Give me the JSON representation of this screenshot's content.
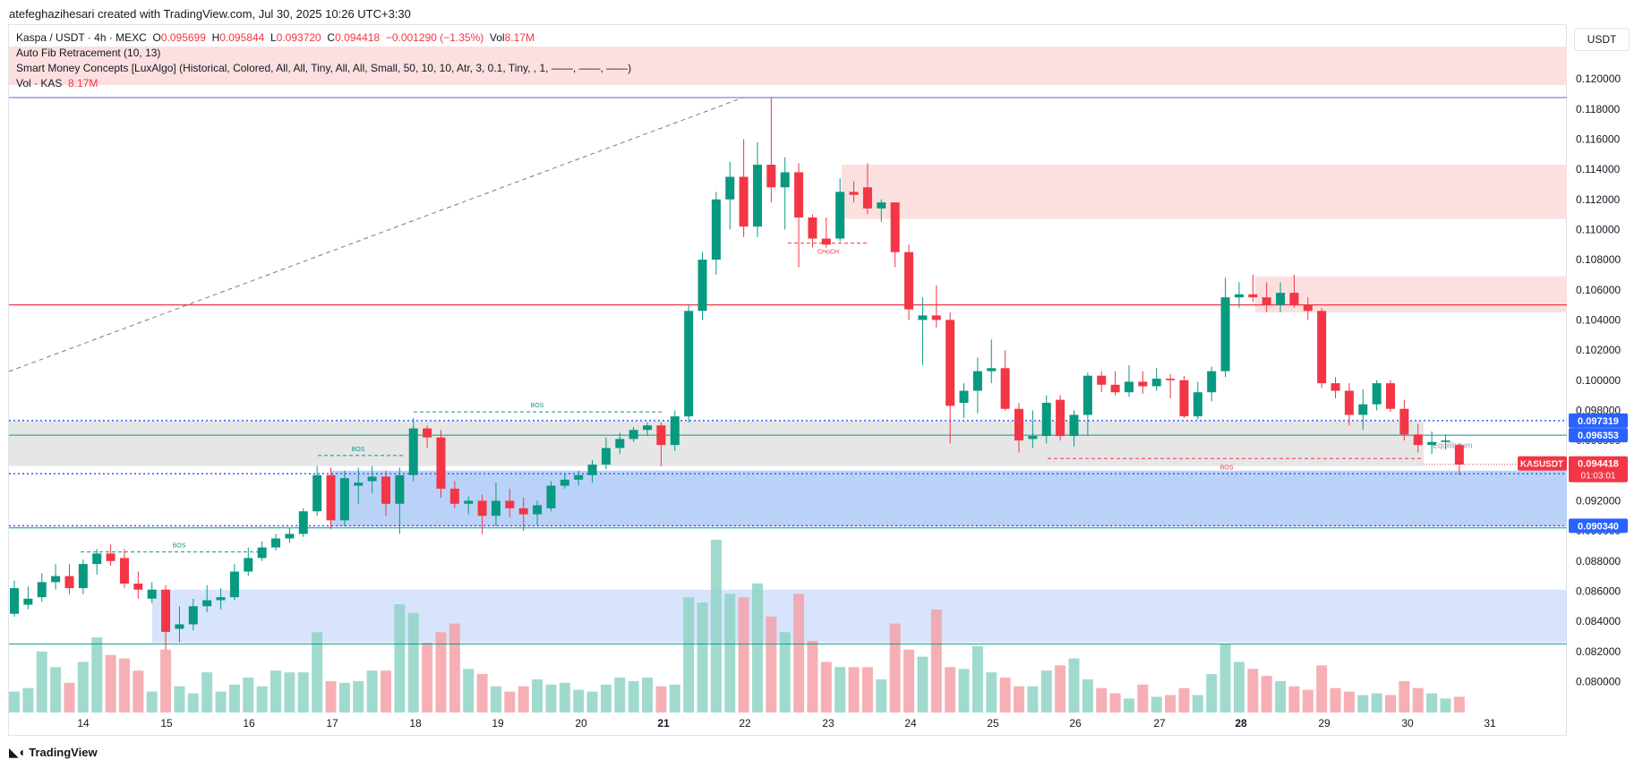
{
  "header": {
    "credit": "atefeghazihesari created with TradingView.com, Jul 30, 2025 10:26 UTC+3:30",
    "currency": "USDT"
  },
  "legend": {
    "symbol": "Kaspa / USDT · 4h · MEXC",
    "open_label": "O",
    "open": "0.095699",
    "high_label": "H",
    "high": "0.095844",
    "low_label": "L",
    "low": "0.093720",
    "close_label": "C",
    "close": "0.094418",
    "change": "−0.001290 (−1.35%)",
    "vol_label": "Vol",
    "vol": "8.17M",
    "indicator1": "Auto Fib Retracement (10, 13)",
    "indicator2": "Smart Money Concepts [LuxAlgo] (Historical, Colored, All, All, Tiny, All, All, Small, 50, 10, 10, Atr, 3, 0.1, Tiny, , 1, ——, ——, ——)",
    "vol_indicator": "Vol · KAS",
    "vol_indicator_value": "8.17M"
  },
  "footer": {
    "brand": "TradingView"
  },
  "colors": {
    "up": "#089981",
    "down": "#f23645",
    "vol_up": "#8fd3c5",
    "vol_down": "#f5a2a8",
    "supply_zone": "#fbdada",
    "demand_zone": "#b3cdf7",
    "equilibrium_zone": "#e3e3e3",
    "price_label_blue": "#2962ff"
  },
  "chart_data": {
    "type": "candlestick",
    "ylim": [
      0.0786,
      0.1206
    ],
    "y_ticks": [
      "0.120000",
      "0.118000",
      "0.116000",
      "0.114000",
      "0.112000",
      "0.110000",
      "0.108000",
      "0.106000",
      "0.104000",
      "0.102000",
      "0.100000",
      "0.098000",
      "0.096000",
      "0.094000",
      "0.092000",
      "0.090000",
      "0.088000",
      "0.086000",
      "0.084000",
      "0.082000",
      "0.080000"
    ],
    "x_ticks": [
      "14",
      "15",
      "16",
      "17",
      "18",
      "19",
      "20",
      "21",
      "22",
      "23",
      "24",
      "25",
      "26",
      "27",
      "28",
      "29",
      "30",
      "31"
    ],
    "candles": [
      {
        "o": 0.0845,
        "h": 0.0867,
        "l": 0.0843,
        "c": 0.0862,
        "v": 1.2
      },
      {
        "o": 0.0851,
        "h": 0.0863,
        "l": 0.0848,
        "c": 0.0855,
        "v": 1.4
      },
      {
        "o": 0.0856,
        "h": 0.0872,
        "l": 0.0853,
        "c": 0.0866,
        "v": 3.5
      },
      {
        "o": 0.0866,
        "h": 0.0878,
        "l": 0.0861,
        "c": 0.087,
        "v": 2.6
      },
      {
        "o": 0.087,
        "h": 0.0878,
        "l": 0.0858,
        "c": 0.0862,
        "v": 1.7
      },
      {
        "o": 0.0862,
        "h": 0.0881,
        "l": 0.0858,
        "c": 0.0878,
        "v": 2.9
      },
      {
        "o": 0.0878,
        "h": 0.0888,
        "l": 0.0871,
        "c": 0.0885,
        "v": 4.3
      },
      {
        "o": 0.0885,
        "h": 0.0891,
        "l": 0.0877,
        "c": 0.088,
        "v": 3.3
      },
      {
        "o": 0.0882,
        "h": 0.0888,
        "l": 0.0862,
        "c": 0.0865,
        "v": 3.1
      },
      {
        "o": 0.0865,
        "h": 0.0873,
        "l": 0.0855,
        "c": 0.0861,
        "v": 2.4
      },
      {
        "o": 0.0855,
        "h": 0.0866,
        "l": 0.0852,
        "c": 0.0861,
        "v": 1.2
      },
      {
        "o": 0.0861,
        "h": 0.0864,
        "l": 0.0821,
        "c": 0.0833,
        "v": 3.6
      },
      {
        "o": 0.0835,
        "h": 0.085,
        "l": 0.0826,
        "c": 0.0838,
        "v": 1.5
      },
      {
        "o": 0.0838,
        "h": 0.0855,
        "l": 0.0834,
        "c": 0.085,
        "v": 1.1
      },
      {
        "o": 0.085,
        "h": 0.0864,
        "l": 0.0846,
        "c": 0.0854,
        "v": 2.3
      },
      {
        "o": 0.0854,
        "h": 0.0862,
        "l": 0.0848,
        "c": 0.0856,
        "v": 1.2
      },
      {
        "o": 0.0856,
        "h": 0.0878,
        "l": 0.0854,
        "c": 0.0873,
        "v": 1.6
      },
      {
        "o": 0.0873,
        "h": 0.0889,
        "l": 0.087,
        "c": 0.0882,
        "v": 2.0
      },
      {
        "o": 0.0882,
        "h": 0.0893,
        "l": 0.088,
        "c": 0.0889,
        "v": 1.5
      },
      {
        "o": 0.0889,
        "h": 0.0898,
        "l": 0.0887,
        "c": 0.0895,
        "v": 2.4
      },
      {
        "o": 0.0895,
        "h": 0.0902,
        "l": 0.0892,
        "c": 0.0898,
        "v": 2.3
      },
      {
        "o": 0.0898,
        "h": 0.0915,
        "l": 0.0896,
        "c": 0.0913,
        "v": 2.3
      },
      {
        "o": 0.0913,
        "h": 0.0943,
        "l": 0.091,
        "c": 0.0937,
        "v": 4.6
      },
      {
        "o": 0.0937,
        "h": 0.0942,
        "l": 0.0901,
        "c": 0.0907,
        "v": 1.8
      },
      {
        "o": 0.0907,
        "h": 0.094,
        "l": 0.0903,
        "c": 0.0935,
        "v": 1.7
      },
      {
        "o": 0.093,
        "h": 0.0942,
        "l": 0.0918,
        "c": 0.0932,
        "v": 1.8
      },
      {
        "o": 0.0933,
        "h": 0.0943,
        "l": 0.0925,
        "c": 0.0936,
        "v": 2.4
      },
      {
        "o": 0.0936,
        "h": 0.094,
        "l": 0.091,
        "c": 0.0918,
        "v": 2.4
      },
      {
        "o": 0.0918,
        "h": 0.0942,
        "l": 0.0898,
        "c": 0.0937,
        "v": 6.2
      },
      {
        "o": 0.0937,
        "h": 0.0975,
        "l": 0.0933,
        "c": 0.0968,
        "v": 5.7
      },
      {
        "o": 0.0968,
        "h": 0.097,
        "l": 0.0955,
        "c": 0.0962,
        "v": 4.0
      },
      {
        "o": 0.0962,
        "h": 0.0967,
        "l": 0.0922,
        "c": 0.0928,
        "v": 4.6
      },
      {
        "o": 0.0928,
        "h": 0.0933,
        "l": 0.0915,
        "c": 0.0918,
        "v": 5.1
      },
      {
        "o": 0.0918,
        "h": 0.0923,
        "l": 0.0911,
        "c": 0.092,
        "v": 2.5
      },
      {
        "o": 0.092,
        "h": 0.0924,
        "l": 0.0898,
        "c": 0.091,
        "v": 2.2
      },
      {
        "o": 0.091,
        "h": 0.0932,
        "l": 0.0903,
        "c": 0.092,
        "v": 1.5
      },
      {
        "o": 0.092,
        "h": 0.0928,
        "l": 0.0909,
        "c": 0.0915,
        "v": 1.2
      },
      {
        "o": 0.0915,
        "h": 0.0922,
        "l": 0.09,
        "c": 0.0911,
        "v": 1.5
      },
      {
        "o": 0.0911,
        "h": 0.092,
        "l": 0.0904,
        "c": 0.0917,
        "v": 1.9
      },
      {
        "o": 0.0915,
        "h": 0.0933,
        "l": 0.0913,
        "c": 0.093,
        "v": 1.6
      },
      {
        "o": 0.093,
        "h": 0.0938,
        "l": 0.0928,
        "c": 0.0934,
        "v": 1.7
      },
      {
        "o": 0.0934,
        "h": 0.094,
        "l": 0.093,
        "c": 0.0937,
        "v": 1.3
      },
      {
        "o": 0.0937,
        "h": 0.0947,
        "l": 0.0932,
        "c": 0.0944,
        "v": 1.2
      },
      {
        "o": 0.0944,
        "h": 0.0962,
        "l": 0.0941,
        "c": 0.0955,
        "v": 1.6
      },
      {
        "o": 0.0955,
        "h": 0.0965,
        "l": 0.0951,
        "c": 0.0961,
        "v": 2.0
      },
      {
        "o": 0.0961,
        "h": 0.0969,
        "l": 0.0959,
        "c": 0.0967,
        "v": 1.8
      },
      {
        "o": 0.0967,
        "h": 0.0972,
        "l": 0.0963,
        "c": 0.097,
        "v": 2.0
      },
      {
        "o": 0.097,
        "h": 0.0972,
        "l": 0.0943,
        "c": 0.0957,
        "v": 1.5
      },
      {
        "o": 0.0957,
        "h": 0.098,
        "l": 0.0953,
        "c": 0.0976,
        "v": 1.6
      },
      {
        "o": 0.0976,
        "h": 0.105,
        "l": 0.0972,
        "c": 0.1046,
        "v": 6.6
      },
      {
        "o": 0.1046,
        "h": 0.1085,
        "l": 0.104,
        "c": 0.108,
        "v": 6.3
      },
      {
        "o": 0.108,
        "h": 0.1125,
        "l": 0.107,
        "c": 0.112,
        "v": 9.9
      },
      {
        "o": 0.112,
        "h": 0.1145,
        "l": 0.11,
        "c": 0.1135,
        "v": 6.8
      },
      {
        "o": 0.1135,
        "h": 0.116,
        "l": 0.1095,
        "c": 0.1102,
        "v": 6.6
      },
      {
        "o": 0.1102,
        "h": 0.1158,
        "l": 0.1095,
        "c": 0.1143,
        "v": 7.4
      },
      {
        "o": 0.1143,
        "h": 0.1188,
        "l": 0.1118,
        "c": 0.1128,
        "v": 5.5
      },
      {
        "o": 0.1128,
        "h": 0.1148,
        "l": 0.11,
        "c": 0.1138,
        "v": 4.6
      },
      {
        "o": 0.1138,
        "h": 0.1144,
        "l": 0.1075,
        "c": 0.1108,
        "v": 6.8
      },
      {
        "o": 0.1108,
        "h": 0.111,
        "l": 0.1088,
        "c": 0.1094,
        "v": 4.1
      },
      {
        "o": 0.1094,
        "h": 0.1108,
        "l": 0.1088,
        "c": 0.109,
        "v": 2.9
      },
      {
        "o": 0.1094,
        "h": 0.1134,
        "l": 0.1092,
        "c": 0.1125,
        "v": 2.6
      },
      {
        "o": 0.1125,
        "h": 0.1132,
        "l": 0.1118,
        "c": 0.1123,
        "v": 2.6
      },
      {
        "o": 0.1128,
        "h": 0.1144,
        "l": 0.111,
        "c": 0.1114,
        "v": 2.6
      },
      {
        "o": 0.1114,
        "h": 0.112,
        "l": 0.1105,
        "c": 0.1118,
        "v": 1.9
      },
      {
        "o": 0.1118,
        "h": 0.1118,
        "l": 0.1075,
        "c": 0.1085,
        "v": 5.1
      },
      {
        "o": 0.1085,
        "h": 0.109,
        "l": 0.104,
        "c": 0.1047,
        "v": 3.6
      },
      {
        "o": 0.104,
        "h": 0.1055,
        "l": 0.101,
        "c": 0.1043,
        "v": 3.2
      },
      {
        "o": 0.1043,
        "h": 0.1063,
        "l": 0.1035,
        "c": 0.104,
        "v": 5.9
      },
      {
        "o": 0.104,
        "h": 0.1045,
        "l": 0.0958,
        "c": 0.0983,
        "v": 2.6
      },
      {
        "o": 0.0985,
        "h": 0.0998,
        "l": 0.0975,
        "c": 0.0993,
        "v": 2.5
      },
      {
        "o": 0.0993,
        "h": 0.1015,
        "l": 0.0978,
        "c": 0.1006,
        "v": 3.8
      },
      {
        "o": 0.1006,
        "h": 0.1027,
        "l": 0.0998,
        "c": 0.1008,
        "v": 2.3
      },
      {
        "o": 0.1008,
        "h": 0.102,
        "l": 0.098,
        "c": 0.0981,
        "v": 2.0
      },
      {
        "o": 0.0981,
        "h": 0.0985,
        "l": 0.0952,
        "c": 0.096,
        "v": 1.5
      },
      {
        "o": 0.0961,
        "h": 0.098,
        "l": 0.0955,
        "c": 0.0963,
        "v": 1.5
      },
      {
        "o": 0.0963,
        "h": 0.099,
        "l": 0.0958,
        "c": 0.0985,
        "v": 2.4
      },
      {
        "o": 0.0987,
        "h": 0.099,
        "l": 0.096,
        "c": 0.0963,
        "v": 2.7
      },
      {
        "o": 0.0963,
        "h": 0.098,
        "l": 0.0956,
        "c": 0.0977,
        "v": 3.1
      },
      {
        "o": 0.0977,
        "h": 0.1005,
        "l": 0.0963,
        "c": 0.1003,
        "v": 1.9
      },
      {
        "o": 0.1003,
        "h": 0.1006,
        "l": 0.0992,
        "c": 0.0997,
        "v": 1.4
      },
      {
        "o": 0.0997,
        "h": 0.1006,
        "l": 0.099,
        "c": 0.0992,
        "v": 1.1
      },
      {
        "o": 0.0992,
        "h": 0.101,
        "l": 0.0989,
        "c": 0.0999,
        "v": 0.8
      },
      {
        "o": 0.0999,
        "h": 0.1006,
        "l": 0.0991,
        "c": 0.0996,
        "v": 1.6
      },
      {
        "o": 0.0996,
        "h": 0.1008,
        "l": 0.0993,
        "c": 0.1001,
        "v": 0.9
      },
      {
        "o": 0.1001,
        "h": 0.1004,
        "l": 0.0988,
        "c": 0.1,
        "v": 1.0
      },
      {
        "o": 0.1,
        "h": 0.1003,
        "l": 0.0975,
        "c": 0.0976,
        "v": 1.4
      },
      {
        "o": 0.0976,
        "h": 0.0999,
        "l": 0.0974,
        "c": 0.0992,
        "v": 1.0
      },
      {
        "o": 0.0992,
        "h": 0.1009,
        "l": 0.0986,
        "c": 0.1006,
        "v": 2.2
      },
      {
        "o": 0.1006,
        "h": 0.1068,
        "l": 0.1002,
        "c": 0.1055,
        "v": 3.9
      },
      {
        "o": 0.1055,
        "h": 0.1065,
        "l": 0.1048,
        "c": 0.1057,
        "v": 2.9
      },
      {
        "o": 0.1057,
        "h": 0.107,
        "l": 0.1052,
        "c": 0.1055,
        "v": 2.5
      },
      {
        "o": 0.1055,
        "h": 0.1065,
        "l": 0.1045,
        "c": 0.105,
        "v": 2.1
      },
      {
        "o": 0.105,
        "h": 0.1065,
        "l": 0.1045,
        "c": 0.1058,
        "v": 1.8
      },
      {
        "o": 0.1058,
        "h": 0.107,
        "l": 0.1048,
        "c": 0.105,
        "v": 1.5
      },
      {
        "o": 0.105,
        "h": 0.1055,
        "l": 0.104,
        "c": 0.1046,
        "v": 1.3
      },
      {
        "o": 0.1046,
        "h": 0.1048,
        "l": 0.0995,
        "c": 0.0998,
        "v": 2.7
      },
      {
        "o": 0.0998,
        "h": 0.1002,
        "l": 0.0988,
        "c": 0.0993,
        "v": 1.4
      },
      {
        "o": 0.0993,
        "h": 0.0998,
        "l": 0.097,
        "c": 0.0977,
        "v": 1.2
      },
      {
        "o": 0.0977,
        "h": 0.0994,
        "l": 0.0967,
        "c": 0.0984,
        "v": 1.0
      },
      {
        "o": 0.0984,
        "h": 0.1,
        "l": 0.098,
        "c": 0.0998,
        "v": 1.1
      },
      {
        "o": 0.0998,
        "h": 0.1,
        "l": 0.0979,
        "c": 0.0981,
        "v": 1.0
      },
      {
        "o": 0.0981,
        "h": 0.0987,
        "l": 0.096,
        "c": 0.0964,
        "v": 1.8
      },
      {
        "o": 0.0964,
        "h": 0.0971,
        "l": 0.0952,
        "c": 0.0957,
        "v": 1.4
      },
      {
        "o": 0.0957,
        "h": 0.0966,
        "l": 0.0951,
        "c": 0.0959,
        "v": 1.1
      },
      {
        "o": 0.0959,
        "h": 0.0964,
        "l": 0.0954,
        "c": 0.096,
        "v": 0.8
      },
      {
        "o": 0.0957,
        "h": 0.0958,
        "l": 0.0937,
        "c": 0.0944,
        "v": 0.9
      }
    ],
    "markers": {
      "current_price": "0.094418",
      "countdown": "01:03:01",
      "symbol_tag": "KASUSDT",
      "levels": [
        {
          "value": "0.097319",
          "y": 0.097319
        },
        {
          "value": "0.096353",
          "y": 0.096353
        },
        {
          "value": "0.093793",
          "y": 0.093793
        },
        {
          "value": "0.090340",
          "y": 0.09034
        }
      ],
      "equilibrium_label": "Equilibrium",
      "bos_label": "BOS",
      "choch_label": "CHoCH"
    }
  }
}
